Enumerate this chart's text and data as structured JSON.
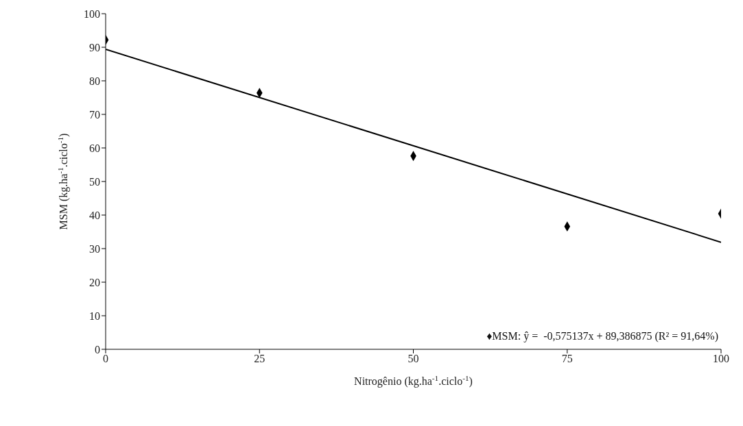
{
  "chart_data": {
    "type": "scatter",
    "xlabel": "Nitrogênio (kg.ha$^{-1}$.ciclo$^{-1}$)",
    "ylabel": "MSM (kg.ha$^{-1}$.ciclo$^{-1}$)",
    "x": [
      0,
      25,
      50,
      75,
      100
    ],
    "xlim": [
      0,
      100
    ],
    "xticks": [
      0,
      25,
      50,
      75,
      100
    ],
    "ylim": [
      0,
      100
    ],
    "yticks": [
      0,
      10,
      20,
      30,
      40,
      50,
      60,
      70,
      80,
      90,
      100
    ],
    "series": [
      {
        "color": "#000000",
        "marker": "diamond",
        "values": [
          92.2,
          76.4,
          57.6,
          36.6,
          40.4
        ]
      },
      {
        "type": "line",
        "color": "#000000",
        "x": [
          0,
          100
        ],
        "values": [
          89.4,
          31.9
        ],
        "line_style": "solid"
      }
    ],
    "grid": false,
    "legend": false,
    "annotations": [
      "♦MSM: ŷ =  -0,575137x + 89,386875 (R² = 91,64%)"
    ]
  }
}
